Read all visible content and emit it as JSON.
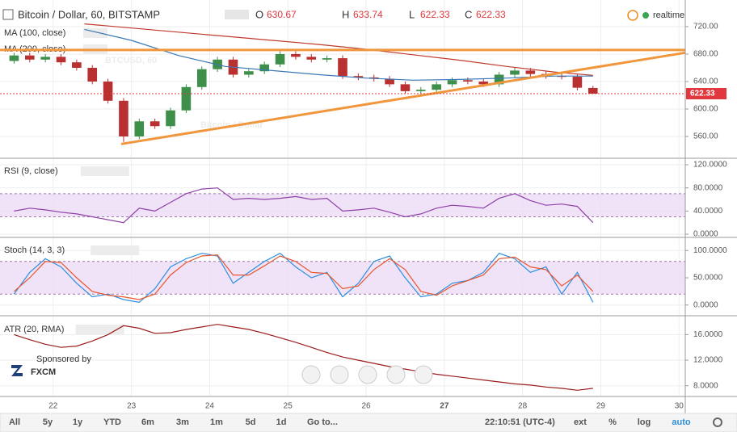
{
  "header": {
    "title": "Bitcoin / Dollar, 60, BITSTAMP",
    "ohlc_keys": [
      "O",
      "H",
      "L",
      "C"
    ],
    "status": "realtime"
  },
  "sponsor": {
    "text": "Sponsored by",
    "brand": "FXCM"
  },
  "toolbar": {
    "ranges": [
      "All",
      "5y",
      "1y",
      "YTD",
      "6m",
      "3m",
      "1m",
      "5d",
      "1d"
    ],
    "goto": "Go to...",
    "time": "22:10:51 (UTC-4)",
    "options": [
      "ext",
      "%",
      "log",
      "auto"
    ]
  },
  "chart_data": [
    {
      "type": "candlestick",
      "watermark": "BTCUSD, 60",
      "watermark_name": "Bitcoin / Dollar",
      "x": [
        21.5,
        21.7,
        21.9,
        22.1,
        22.3,
        22.5,
        22.7,
        22.9,
        23.1,
        23.3,
        23.5,
        23.7,
        23.9,
        24.1,
        24.3,
        24.5,
        24.7,
        24.9,
        25.1,
        25.3,
        25.5,
        25.7,
        25.9,
        26.1,
        26.3,
        26.5,
        26.7,
        26.9,
        27.1,
        27.3,
        27.5,
        27.7,
        27.9,
        28.1,
        28.3,
        28.5,
        28.7,
        28.9
      ],
      "open": [
        670,
        678,
        672,
        676,
        668,
        660,
        640,
        612,
        560,
        582,
        575,
        598,
        632,
        658,
        672,
        650,
        655,
        665,
        680,
        676,
        672,
        674,
        648,
        646,
        644,
        636,
        626,
        628,
        636,
        642,
        640,
        636,
        650,
        656,
        651,
        648,
        647,
        630.67
      ],
      "high": [
        682,
        682,
        680,
        680,
        672,
        664,
        644,
        616,
        586,
        586,
        602,
        636,
        662,
        676,
        676,
        658,
        669,
        684,
        684,
        680,
        678,
        678,
        652,
        650,
        648,
        640,
        632,
        640,
        646,
        646,
        644,
        654,
        660,
        660,
        655,
        652,
        651,
        633.74
      ],
      "low": [
        666,
        668,
        668,
        664,
        656,
        636,
        608,
        552,
        556,
        571,
        571,
        594,
        628,
        654,
        646,
        646,
        651,
        661,
        672,
        668,
        668,
        644,
        642,
        640,
        632,
        622,
        622,
        624,
        632,
        636,
        632,
        632,
        646,
        647,
        644,
        643,
        627,
        622.33
      ],
      "close": [
        678,
        672,
        676,
        668,
        660,
        640,
        612,
        560,
        582,
        575,
        598,
        632,
        658,
        672,
        650,
        655,
        665,
        680,
        676,
        672,
        674,
        648,
        646,
        644,
        636,
        626,
        628,
        636,
        642,
        640,
        636,
        650,
        656,
        651,
        648,
        647,
        631,
        622.33
      ],
      "up_color": "#3d8f4a",
      "down_color": "#b8302f",
      "series": [
        {
          "name": "MA (100, close)",
          "color": "#c0392b",
          "x": [
            22.4,
            23.0,
            23.6,
            24.2,
            24.8,
            25.4,
            26.0,
            26.6,
            27.2,
            27.8,
            28.4,
            28.9
          ],
          "values": [
            724,
            718,
            712,
            706,
            700,
            694,
            687,
            679,
            671,
            662,
            654,
            649
          ]
        },
        {
          "name": "MA (200, close)",
          "color": "#3a78b5",
          "x": [
            22.4,
            23.0,
            23.6,
            24.2,
            24.8,
            25.4,
            26.0,
            26.6,
            27.2,
            27.8,
            28.4,
            28.9
          ],
          "values": [
            716,
            700,
            678,
            662,
            656,
            650,
            645,
            642,
            643,
            645,
            648,
            648
          ]
        }
      ],
      "trendlines": [
        {
          "color": "#f0963c",
          "x": [
            21.32,
            30.08
          ],
          "values": [
            686,
            686
          ]
        },
        {
          "color": "#f0963c",
          "x": [
            22.87,
            30.08
          ],
          "values": [
            549,
            682
          ]
        }
      ],
      "last_line_color": "#e0383e",
      "xlim": [
        21.32,
        30.08
      ],
      "xticks": [
        22,
        23,
        24,
        25,
        26,
        27,
        28,
        29,
        30
      ],
      "ylim": [
        529.4,
        758.8
      ],
      "yticks": [
        {
          "value": 560,
          "label": "560.00"
        },
        {
          "value": 600,
          "label": "600.00"
        },
        {
          "value": 640,
          "label": "640.00"
        },
        {
          "value": 680,
          "label": "680.00"
        },
        {
          "value": 720,
          "label": "720.00"
        }
      ]
    },
    {
      "type": "line",
      "title": "RSI (9, close)",
      "color": "#8e3fa8",
      "band": [
        30,
        70
      ],
      "x": [
        21.5,
        21.7,
        21.9,
        22.1,
        22.3,
        22.5,
        22.7,
        22.9,
        23.1,
        23.3,
        23.5,
        23.7,
        23.9,
        24.1,
        24.3,
        24.5,
        24.7,
        24.9,
        25.1,
        25.3,
        25.5,
        25.7,
        25.9,
        26.1,
        26.3,
        26.5,
        26.7,
        26.9,
        27.1,
        27.3,
        27.5,
        27.7,
        27.9,
        28.1,
        28.3,
        28.5,
        28.7,
        28.9
      ],
      "series": [
        {
          "color": "#8e3fa8",
          "values": [
            40,
            45,
            42,
            38,
            35,
            30,
            25,
            20,
            45,
            40,
            55,
            70,
            78,
            80,
            60,
            62,
            60,
            62,
            65,
            60,
            62,
            40,
            42,
            45,
            38,
            30,
            35,
            45,
            50,
            48,
            45,
            62,
            70,
            58,
            50,
            52,
            48,
            20
          ]
        }
      ],
      "xlim": [
        21.32,
        30.08
      ],
      "xticks": [
        22,
        23,
        24,
        25,
        26,
        27,
        28,
        29,
        30
      ],
      "ylim": [
        -4.1,
        129.7
      ],
      "yticks": [
        {
          "value": 0,
          "label": "0.0000"
        },
        {
          "value": 40,
          "label": "40.0000"
        },
        {
          "value": 80,
          "label": "80.0000"
        },
        {
          "value": 120,
          "label": "120.0000"
        }
      ]
    },
    {
      "type": "line",
      "title": "Stoch (14, 3, 3)",
      "band": [
        20,
        80
      ],
      "x": [
        21.5,
        21.7,
        21.9,
        22.1,
        22.3,
        22.5,
        22.7,
        22.9,
        23.1,
        23.3,
        23.5,
        23.7,
        23.9,
        24.1,
        24.3,
        24.5,
        24.7,
        24.9,
        25.1,
        25.3,
        25.5,
        25.7,
        25.9,
        26.1,
        26.3,
        26.5,
        26.7,
        26.9,
        27.1,
        27.3,
        27.5,
        27.7,
        27.9,
        28.1,
        28.3,
        28.5,
        28.7,
        28.9
      ],
      "series": [
        {
          "color": "#2d8ee0",
          "values": [
            20,
            60,
            85,
            70,
            40,
            15,
            20,
            10,
            5,
            30,
            70,
            85,
            95,
            90,
            40,
            60,
            80,
            95,
            70,
            50,
            60,
            15,
            40,
            80,
            90,
            50,
            15,
            20,
            40,
            45,
            60,
            95,
            85,
            60,
            70,
            20,
            60,
            5
          ]
        },
        {
          "color": "#e8552e",
          "values": [
            25,
            50,
            80,
            78,
            50,
            25,
            18,
            15,
            10,
            20,
            55,
            78,
            90,
            92,
            55,
            55,
            72,
            90,
            80,
            60,
            58,
            30,
            35,
            65,
            85,
            65,
            25,
            18,
            35,
            45,
            55,
            85,
            88,
            70,
            65,
            35,
            55,
            25
          ]
        }
      ],
      "xlim": [
        21.32,
        30.08
      ],
      "xticks": [
        22,
        23,
        24,
        25,
        26,
        27,
        28,
        29,
        30
      ],
      "ylim": [
        -18.2,
        122.7
      ],
      "yticks": [
        {
          "value": 0,
          "label": "0.0000"
        },
        {
          "value": 50,
          "label": "50.0000"
        },
        {
          "value": 100,
          "label": "100.0000"
        }
      ]
    },
    {
      "type": "line",
      "title": "ATR (20, RMA)",
      "x": [
        21.5,
        21.7,
        21.9,
        22.1,
        22.3,
        22.5,
        22.7,
        22.9,
        23.1,
        23.3,
        23.5,
        23.7,
        23.9,
        24.1,
        24.3,
        24.5,
        24.7,
        24.9,
        25.1,
        25.3,
        25.5,
        25.7,
        25.9,
        26.1,
        26.3,
        26.5,
        26.7,
        26.9,
        27.1,
        27.3,
        27.5,
        27.7,
        27.9,
        28.1,
        28.3,
        28.5,
        28.7,
        28.9
      ],
      "series": [
        {
          "color": "#9b1c1c",
          "values": [
            16,
            15.2,
            14.5,
            14,
            14.2,
            15,
            16,
            17.4,
            17,
            16.2,
            16.3,
            16.8,
            17.2,
            17.6,
            17.2,
            16.8,
            16.2,
            15.5,
            14.8,
            14,
            13.2,
            12.5,
            12,
            11.5,
            11,
            10.6,
            10.2,
            9.8,
            9.5,
            9.2,
            8.9,
            8.6,
            8.3,
            8.1,
            7.8,
            7.6,
            7.3,
            7.6
          ]
        }
      ],
      "xlim": [
        21.32,
        30.08
      ],
      "xticks": [
        22,
        23,
        24,
        25,
        26,
        27,
        28,
        29,
        30
      ],
      "ylim": [
        6.45,
        18.7
      ],
      "yticks": [
        {
          "value": 8,
          "label": "8.0000"
        },
        {
          "value": 12,
          "label": "12.0000"
        },
        {
          "value": 16,
          "label": "16.0000"
        }
      ]
    }
  ]
}
